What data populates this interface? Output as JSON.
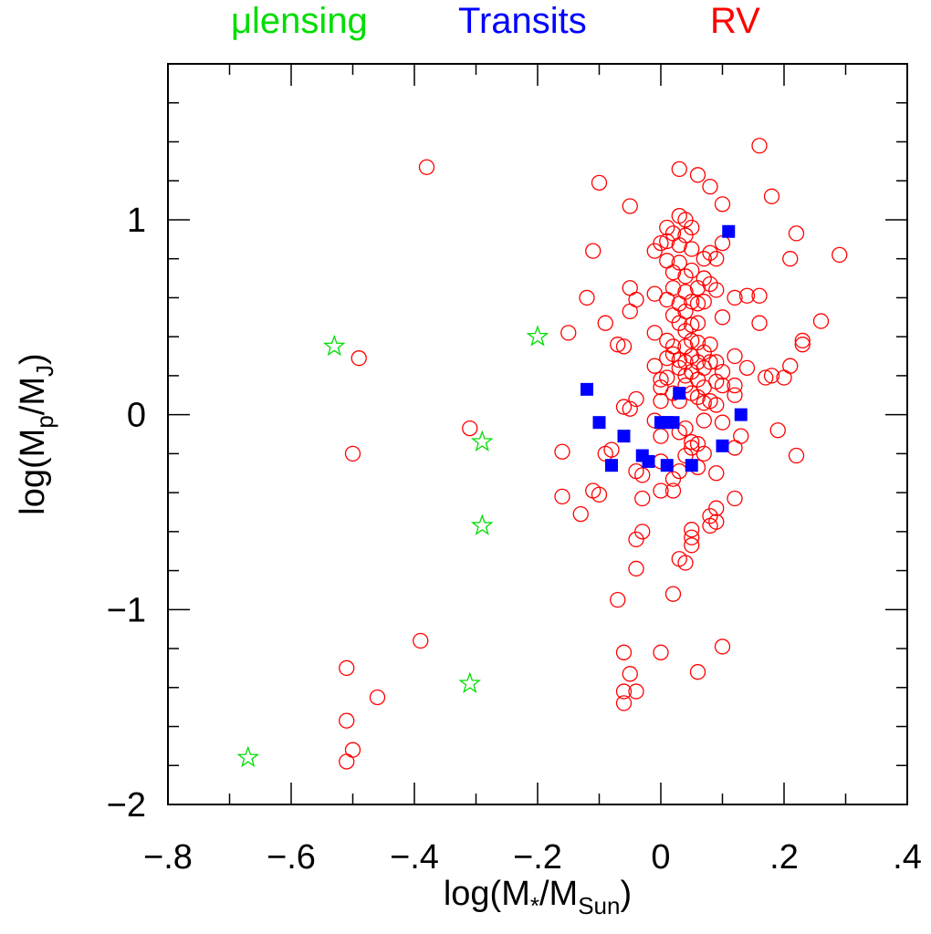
{
  "chart_data": {
    "type": "scatter",
    "title": "",
    "legend": {
      "placement": "top",
      "entries": [
        {
          "key": "microlensing",
          "prefix": "μ",
          "label": "lensing",
          "color": "#00dd00"
        },
        {
          "key": "transits",
          "prefix": "",
          "label": "Transits",
          "color": "#0000ff"
        },
        {
          "key": "rv",
          "prefix": "",
          "label": "RV",
          "color": "#ff0000"
        }
      ]
    },
    "xlabel": {
      "main": "log(M",
      "sub1": "*",
      "mid": "/M",
      "sub2": "Sun",
      "end": ")"
    },
    "ylabel": {
      "main": "log(M",
      "sub1": "p",
      "mid": "/M",
      "sub2": "J",
      "end": ")"
    },
    "xlim": [
      -0.8,
      0.4
    ],
    "ylim": [
      -2.0,
      1.8
    ],
    "x_ticks": [
      {
        "v": -0.8,
        "label": "−.8"
      },
      {
        "v": -0.6,
        "label": "−.6"
      },
      {
        "v": -0.4,
        "label": "−.4"
      },
      {
        "v": -0.2,
        "label": "−.2"
      },
      {
        "v": 0,
        "label": "0"
      },
      {
        "v": 0.2,
        "label": ".2"
      },
      {
        "v": 0.4,
        "label": ".4"
      }
    ],
    "y_ticks": [
      {
        "v": -2,
        "label": "−2"
      },
      {
        "v": -1,
        "label": "−1"
      },
      {
        "v": 0,
        "label": "0"
      },
      {
        "v": 1,
        "label": "1"
      }
    ],
    "grid": false,
    "series": [
      {
        "name": "μlensing",
        "marker": "star",
        "color": "#00dd00",
        "points": [
          [
            -0.67,
            -1.76
          ],
          [
            -0.53,
            0.35
          ],
          [
            -0.2,
            0.4
          ],
          [
            -0.29,
            -0.14
          ],
          [
            -0.29,
            -0.57
          ],
          [
            -0.31,
            -1.38
          ]
        ]
      },
      {
        "name": "Transits",
        "marker": "square",
        "color": "#0000ff",
        "points": [
          [
            0.11,
            0.94
          ],
          [
            -0.12,
            0.13
          ],
          [
            0.03,
            0.11
          ],
          [
            -0.1,
            -0.04
          ],
          [
            0.0,
            -0.04
          ],
          [
            0.01,
            -0.04
          ],
          [
            0.02,
            -0.04
          ],
          [
            0.13,
            0.0
          ],
          [
            -0.06,
            -0.11
          ],
          [
            -0.03,
            -0.21
          ],
          [
            -0.02,
            -0.24
          ],
          [
            0.1,
            -0.16
          ],
          [
            -0.08,
            -0.26
          ],
          [
            0.01,
            -0.26
          ],
          [
            0.05,
            -0.26
          ]
        ]
      },
      {
        "name": "RV",
        "marker": "circle",
        "color": "#ff0000",
        "points": [
          [
            -0.38,
            1.27
          ],
          [
            -0.49,
            0.29
          ],
          [
            -0.5,
            -0.2
          ],
          [
            -0.31,
            -0.07
          ],
          [
            -0.39,
            -1.16
          ],
          [
            -0.51,
            -1.3
          ],
          [
            -0.46,
            -1.45
          ],
          [
            -0.51,
            -1.57
          ],
          [
            -0.5,
            -1.72
          ],
          [
            -0.51,
            -1.78
          ],
          [
            -0.15,
            0.42
          ],
          [
            -0.16,
            -0.19
          ],
          [
            -0.16,
            -0.42
          ],
          [
            -0.13,
            -0.51
          ],
          [
            -0.11,
            -0.39
          ],
          [
            -0.1,
            -0.41
          ],
          [
            -0.12,
            0.6
          ],
          [
            -0.11,
            0.84
          ],
          [
            -0.1,
            1.19
          ],
          [
            -0.09,
            0.47
          ],
          [
            -0.07,
            0.36
          ],
          [
            -0.06,
            0.35
          ],
          [
            -0.09,
            -0.2
          ],
          [
            -0.08,
            -0.18
          ],
          [
            -0.05,
            0.65
          ],
          [
            -0.04,
            0.59
          ],
          [
            -0.05,
            0.53
          ],
          [
            -0.05,
            1.07
          ],
          [
            -0.06,
            0.04
          ],
          [
            -0.05,
            0.03
          ],
          [
            -0.04,
            0.08
          ],
          [
            -0.04,
            -0.29
          ],
          [
            -0.03,
            -0.31
          ],
          [
            -0.03,
            -0.43
          ],
          [
            -0.04,
            -0.64
          ],
          [
            -0.03,
            -0.6
          ],
          [
            -0.04,
            -0.79
          ],
          [
            -0.07,
            -0.95
          ],
          [
            -0.06,
            -1.22
          ],
          [
            -0.05,
            -1.33
          ],
          [
            -0.06,
            -1.42
          ],
          [
            -0.06,
            -1.48
          ],
          [
            -0.04,
            -1.42
          ],
          [
            -0.01,
            0.84
          ],
          [
            -0.01,
            0.62
          ],
          [
            -0.01,
            0.42
          ],
          [
            -0.01,
            0.25
          ],
          [
            0.0,
            0.14
          ],
          [
            0.0,
            0.07
          ],
          [
            0.0,
            -0.11
          ],
          [
            0.0,
            -0.24
          ],
          [
            0.0,
            -0.39
          ],
          [
            0.0,
            -1.22
          ],
          [
            0.0,
            0.88
          ],
          [
            0.01,
            0.96
          ],
          [
            0.01,
            0.89
          ],
          [
            0.01,
            0.79
          ],
          [
            0.01,
            0.59
          ],
          [
            0.01,
            0.38
          ],
          [
            0.01,
            0.29
          ],
          [
            0.01,
            0.19
          ],
          [
            0.02,
            0.11
          ],
          [
            0.02,
            -0.33
          ],
          [
            0.02,
            -0.39
          ],
          [
            0.02,
            -0.92
          ],
          [
            0.02,
            0.93
          ],
          [
            0.02,
            0.73
          ],
          [
            0.02,
            0.65
          ],
          [
            0.02,
            0.51
          ],
          [
            0.02,
            0.31
          ],
          [
            0.03,
            0.87
          ],
          [
            0.03,
            1.02
          ],
          [
            0.03,
            1.26
          ],
          [
            0.03,
            0.78
          ],
          [
            0.03,
            0.57
          ],
          [
            0.03,
            0.47
          ],
          [
            0.03,
            0.28
          ],
          [
            0.03,
            0.24
          ],
          [
            0.03,
            0.07
          ],
          [
            0.03,
            -0.09
          ],
          [
            0.03,
            -0.29
          ],
          [
            0.03,
            -0.74
          ],
          [
            0.04,
            1.0
          ],
          [
            0.04,
            0.92
          ],
          [
            0.04,
            0.71
          ],
          [
            0.04,
            0.63
          ],
          [
            0.04,
            0.53
          ],
          [
            0.04,
            0.43
          ],
          [
            0.04,
            0.35
          ],
          [
            0.04,
            0.27
          ],
          [
            0.04,
            0.2
          ],
          [
            0.04,
            0.15
          ],
          [
            0.04,
            -0.07
          ],
          [
            0.04,
            -0.21
          ],
          [
            0.04,
            -0.76
          ],
          [
            0.05,
            0.96
          ],
          [
            0.05,
            0.74
          ],
          [
            0.05,
            0.58
          ],
          [
            0.05,
            0.46
          ],
          [
            0.05,
            0.38
          ],
          [
            0.05,
            0.3
          ],
          [
            0.05,
            0.22
          ],
          [
            0.05,
            0.11
          ],
          [
            0.05,
            -0.14
          ],
          [
            0.05,
            -0.17
          ],
          [
            0.05,
            -0.59
          ],
          [
            0.05,
            -0.67
          ],
          [
            0.05,
            -0.63
          ],
          [
            0.05,
            0.85
          ],
          [
            0.06,
            1.23
          ],
          [
            0.06,
            0.65
          ],
          [
            0.06,
            0.57
          ],
          [
            0.06,
            0.47
          ],
          [
            0.06,
            0.37
          ],
          [
            0.06,
            0.27
          ],
          [
            0.06,
            0.18
          ],
          [
            0.06,
            0.09
          ],
          [
            0.06,
            -0.15
          ],
          [
            0.06,
            -0.27
          ],
          [
            0.06,
            -1.32
          ],
          [
            0.07,
            0.8
          ],
          [
            0.07,
            0.7
          ],
          [
            0.07,
            0.58
          ],
          [
            0.07,
            0.32
          ],
          [
            0.07,
            0.24
          ],
          [
            0.07,
            0.14
          ],
          [
            0.07,
            0.06
          ],
          [
            0.07,
            -0.03
          ],
          [
            0.08,
            1.17
          ],
          [
            0.08,
            0.83
          ],
          [
            0.08,
            0.67
          ],
          [
            0.08,
            0.36
          ],
          [
            0.08,
            0.27
          ],
          [
            0.08,
            0.07
          ],
          [
            0.08,
            -0.57
          ],
          [
            0.08,
            -0.52
          ],
          [
            0.09,
            0.8
          ],
          [
            0.09,
            0.64
          ],
          [
            0.09,
            0.27
          ],
          [
            0.09,
            0.17
          ],
          [
            0.09,
            0.05
          ],
          [
            0.09,
            -0.3
          ],
          [
            0.09,
            -0.55
          ],
          [
            0.09,
            -0.48
          ],
          [
            0.1,
            1.08
          ],
          [
            0.1,
            0.88
          ],
          [
            0.1,
            0.5
          ],
          [
            0.1,
            0.22
          ],
          [
            0.1,
            0.15
          ],
          [
            0.1,
            -0.04
          ],
          [
            0.1,
            -1.19
          ],
          [
            0.12,
            0.6
          ],
          [
            0.12,
            0.3
          ],
          [
            0.12,
            0.15
          ],
          [
            0.12,
            0.1
          ],
          [
            0.12,
            -0.17
          ],
          [
            0.12,
            -0.43
          ],
          [
            0.13,
            -0.11
          ],
          [
            0.14,
            0.61
          ],
          [
            0.14,
            0.24
          ],
          [
            0.16,
            1.38
          ],
          [
            0.16,
            0.61
          ],
          [
            0.16,
            0.47
          ],
          [
            0.17,
            0.19
          ],
          [
            0.18,
            1.12
          ],
          [
            0.18,
            0.2
          ],
          [
            0.19,
            -0.08
          ],
          [
            0.2,
            0.19
          ],
          [
            0.21,
            0.25
          ],
          [
            0.21,
            0.8
          ],
          [
            0.22,
            0.93
          ],
          [
            0.22,
            -0.21
          ],
          [
            0.23,
            0.36
          ],
          [
            0.23,
            0.38
          ],
          [
            0.26,
            0.48
          ],
          [
            0.29,
            0.82
          ],
          [
            -0.01,
            -0.03
          ],
          [
            0.0,
            0.18
          ],
          [
            0.02,
            0.35
          ],
          [
            0.07,
            -0.2
          ]
        ]
      }
    ]
  }
}
